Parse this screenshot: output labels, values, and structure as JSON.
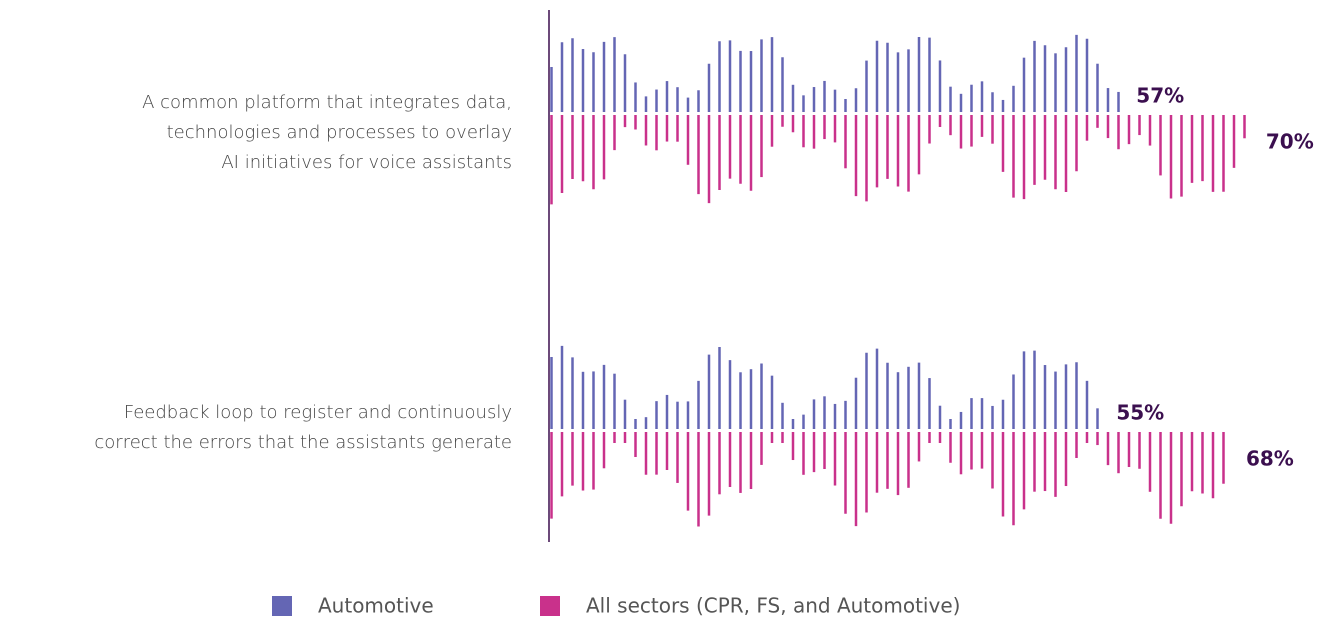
{
  "chart_data": {
    "type": "waveform-bar",
    "categories": [
      "A common platform that integrates data,\ntechnologies and processes to overlay\nAI initiatives for voice assistants",
      "Feedback loop to register and continuously\ncorrect the errors that the assistants generate"
    ],
    "xlim": [
      0,
      100
    ],
    "series": [
      {
        "name": "Automotive",
        "color": "#6466b4",
        "values": [
          57,
          55
        ],
        "value_labels": [
          "57%",
          "55%"
        ]
      },
      {
        "name": "All sectors (CPR, FS, and Automotive)",
        "color": "#c9318b",
        "values": [
          70,
          68
        ],
        "value_labels": [
          "70%",
          "68%"
        ]
      }
    ],
    "label_color": "#3b0f4f"
  }
}
